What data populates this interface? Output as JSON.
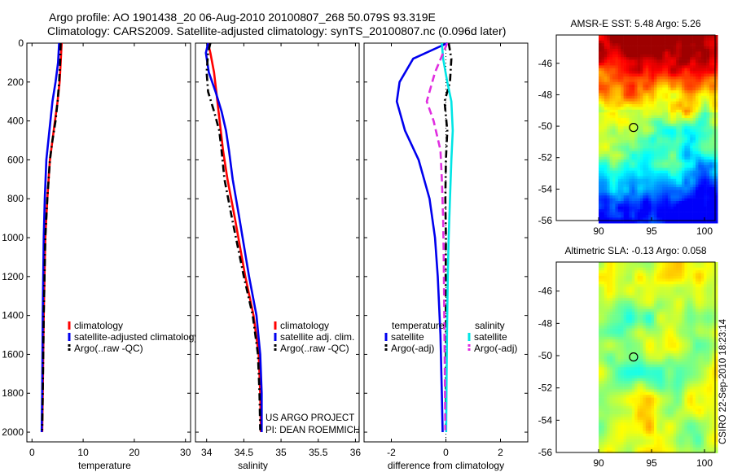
{
  "title_line1": "Argo profile: AO 1901438_20 06-Aug-2010 20100807_268 50.079S 93.319E",
  "title_line2": "Climatology: CARS2009. Satellite-adjusted climatology: synTS_20100807.nc (0.096d later)",
  "credit": "CSIRO 22-Sep-2010 18:23:14",
  "project_line1": "US ARGO PROJECT",
  "project_line2": "PI: DEAN ROEMMICH",
  "colors": {
    "red": "#ff0000",
    "blue": "#0000ee",
    "black": "#000000",
    "cyan": "#00e5e5",
    "magenta": "#e02ee0"
  },
  "chart_data": [
    {
      "type": "line",
      "id": "temperature",
      "xlabel": "temperature",
      "xlim": [
        -1,
        31
      ],
      "ylim": [
        0,
        2050
      ],
      "xticks": [
        "0",
        "10",
        "20",
        "30"
      ],
      "yticks": [
        "0",
        "200",
        "400",
        "600",
        "800",
        "1000",
        "1200",
        "1400",
        "1600",
        "1800",
        "2000"
      ],
      "legend": [
        "climatology",
        "satellite-adjusted climatology",
        "Argo(..raw -QC)"
      ],
      "series": [
        {
          "name": "climatology",
          "color": "red",
          "dash": "solid",
          "x": [
            5.8,
            5.6,
            5.4,
            5.0,
            4.5,
            4.0,
            3.5,
            3.0,
            2.6,
            2.3,
            2.1,
            2.0
          ],
          "y": [
            0,
            100,
            200,
            300,
            400,
            500,
            600,
            800,
            1000,
            1400,
            1800,
            2000
          ]
        },
        {
          "name": "satellite-adjusted climatology",
          "color": "blue",
          "dash": "solid",
          "x": [
            5.3,
            5.1,
            4.6,
            4.0,
            3.6,
            3.2,
            2.8,
            2.5,
            2.3,
            2.1,
            2.0,
            1.9
          ],
          "y": [
            0,
            100,
            200,
            300,
            400,
            500,
            600,
            800,
            1000,
            1400,
            1800,
            2000
          ]
        },
        {
          "name": "Argo(..raw -QC)",
          "color": "black",
          "dash": "dashdot",
          "x": [
            5.6,
            5.5,
            5.3,
            5.0,
            4.6,
            4.0,
            3.5,
            3.0,
            2.6,
            2.3,
            2.1,
            2.0
          ],
          "y": [
            0,
            100,
            200,
            300,
            400,
            500,
            600,
            800,
            1000,
            1400,
            1800,
            1990
          ]
        }
      ]
    },
    {
      "type": "line",
      "id": "salinity",
      "xlabel": "salinity",
      "xlim": [
        33.85,
        36.05
      ],
      "ylim": [
        0,
        2050
      ],
      "xticks": [
        "34",
        "34.5",
        "35",
        "35.5",
        "36"
      ],
      "legend": [
        "climatology",
        "satellite adj. clim.",
        "Argo(..raw -QC)"
      ],
      "series": [
        {
          "name": "climatology",
          "color": "red",
          "dash": "solid",
          "x": [
            34.02,
            34.05,
            34.1,
            34.13,
            34.16,
            34.19,
            34.22,
            34.28,
            34.38,
            34.52,
            34.63,
            34.7,
            34.72,
            34.73
          ],
          "y": [
            0,
            50,
            150,
            250,
            350,
            450,
            550,
            700,
            900,
            1200,
            1400,
            1600,
            1800,
            2000
          ]
        },
        {
          "name": "satellite adj. clim.",
          "color": "blue",
          "dash": "solid",
          "x": [
            34.02,
            33.99,
            34.03,
            34.12,
            34.2,
            34.26,
            34.3,
            34.35,
            34.44,
            34.57,
            34.67,
            34.72,
            34.74,
            34.74
          ],
          "y": [
            0,
            50,
            150,
            250,
            350,
            450,
            550,
            700,
            900,
            1200,
            1400,
            1600,
            1800,
            2000
          ]
        },
        {
          "name": "Argo(..raw -QC)",
          "color": "black",
          "dash": "dashdot",
          "x": [
            34.05,
            34.02,
            34.0,
            34.02,
            34.1,
            34.17,
            34.2,
            34.24,
            34.34,
            34.5,
            34.62,
            34.69,
            34.71,
            34.72
          ],
          "y": [
            0,
            50,
            150,
            250,
            350,
            450,
            550,
            700,
            900,
            1200,
            1400,
            1600,
            1800,
            1990
          ]
        }
      ]
    },
    {
      "type": "line",
      "id": "difference",
      "xlabel": "difference from climatology",
      "xlim": [
        -3,
        3
      ],
      "ylim": [
        0,
        2050
      ],
      "xticks": [
        "-2",
        "0",
        "2"
      ],
      "legend_headers": [
        "temperature",
        "salinity"
      ],
      "legend": [
        "satellite",
        "Argo(-adj)",
        "satellite",
        "Argo(-adj)"
      ],
      "series": [
        {
          "name": "temperature satellite",
          "color": "blue",
          "dash": "solid",
          "x": [
            0.05,
            -1.2,
            -1.7,
            -1.8,
            -1.5,
            -1.0,
            -0.6,
            -0.4,
            -0.3,
            -0.2,
            -0.15,
            -0.12
          ],
          "y": [
            0,
            80,
            200,
            300,
            450,
            600,
            800,
            1000,
            1200,
            1500,
            1800,
            2000
          ]
        },
        {
          "name": "temperature Argo(-adj)",
          "color": "black",
          "dash": "dashdot",
          "x": [
            0.1,
            0.2,
            0.15,
            -0.05,
            0.05,
            0.0,
            -0.02,
            0.0,
            -0.01,
            0.0,
            0.0,
            0.0
          ],
          "y": [
            0,
            80,
            200,
            300,
            450,
            600,
            800,
            1000,
            1200,
            1500,
            1800,
            1990
          ]
        },
        {
          "name": "salinity satellite",
          "color": "cyan",
          "dash": "solid",
          "x": [
            -0.15,
            -0.1,
            0.05,
            0.2,
            0.25,
            0.2,
            0.15,
            0.1,
            0.07,
            0.04,
            0.02,
            0.01
          ],
          "y": [
            0,
            80,
            200,
            300,
            450,
            600,
            800,
            1000,
            1200,
            1500,
            1800,
            2000
          ]
        },
        {
          "name": "salinity Argo(-adj)",
          "color": "magenta",
          "dash": "dashed",
          "x": [
            0.05,
            -0.4,
            -0.7,
            -0.45,
            -0.2,
            -0.15,
            -0.1,
            -0.08,
            -0.06,
            -0.04,
            -0.02
          ],
          "y": [
            0,
            150,
            300,
            400,
            550,
            700,
            900,
            1100,
            1400,
            1700,
            1990
          ]
        }
      ]
    },
    {
      "type": "heatmap",
      "id": "sst",
      "title": "AMSR-E SST: 5.48 Argo: 5.26",
      "xticks": [
        "90",
        "95",
        "100"
      ],
      "yticks": [
        "-46",
        "-48",
        "-50",
        "-52",
        "-54",
        "-56"
      ],
      "xlim": [
        86,
        101
      ],
      "ylim": [
        -56,
        -44.2
      ],
      "marker": {
        "lon": 93.3,
        "lat": -50.08
      }
    },
    {
      "type": "heatmap",
      "id": "sla",
      "title": "Altimetric SLA: -0.13 Argo: 0.058",
      "xticks": [
        "90",
        "95",
        "100"
      ],
      "yticks": [
        "-46",
        "-48",
        "-50",
        "-52",
        "-54",
        "-56"
      ],
      "xlim": [
        86,
        101
      ],
      "ylim": [
        -56,
        -44.2
      ],
      "marker": {
        "lon": 93.3,
        "lat": -50.08
      }
    }
  ]
}
